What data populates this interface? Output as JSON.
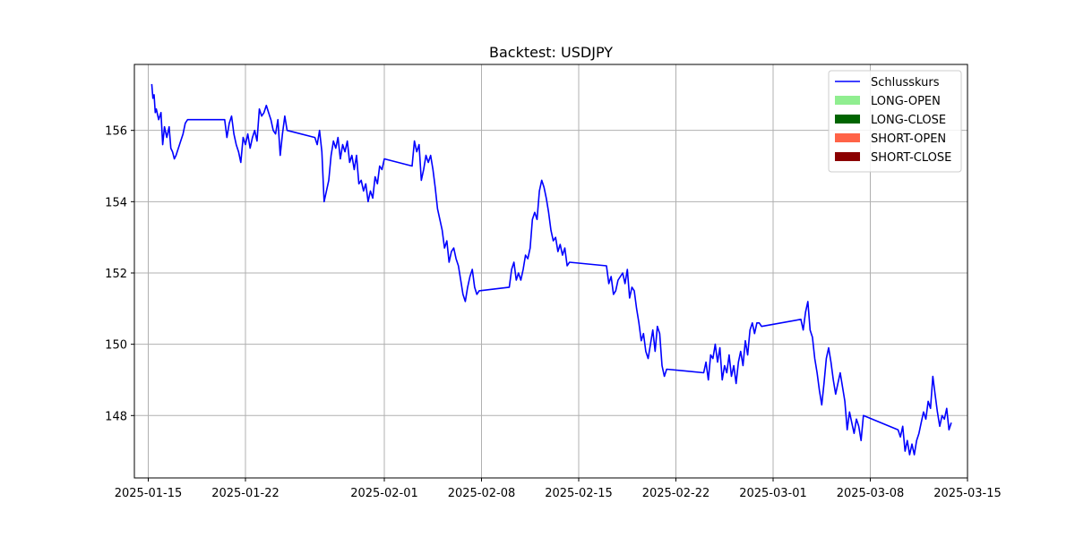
{
  "chart_data": {
    "type": "line",
    "title": "Backtest: USDJPY",
    "xlabel": "",
    "ylabel": "",
    "x_range": [
      "2025-01-14",
      "2025-03-15"
    ],
    "y_range": [
      146.25,
      157.85
    ],
    "x_ticks": [
      "2025-01-15",
      "2025-01-22",
      "2025-02-01",
      "2025-02-08",
      "2025-02-15",
      "2025-02-22",
      "2025-03-01",
      "2025-03-08",
      "2025-03-15"
    ],
    "y_ticks": [
      148,
      150,
      152,
      154,
      156
    ],
    "grid": true,
    "legend_position": "top-right",
    "legend": [
      {
        "label": "Schlusskurs",
        "kind": "line",
        "color": "#0000ff"
      },
      {
        "label": "LONG-OPEN",
        "kind": "patch",
        "color": "#90ee90"
      },
      {
        "label": "LONG-CLOSE",
        "kind": "patch",
        "color": "#006400"
      },
      {
        "label": "SHORT-OPEN",
        "kind": "patch",
        "color": "#ff6347"
      },
      {
        "label": "SHORT-CLOSE",
        "kind": "patch",
        "color": "#8b0000"
      }
    ],
    "series": [
      {
        "name": "Schlusskurs",
        "color": "#0000ff",
        "points": [
          [
            "2025-01-15 06:00",
            157.3
          ],
          [
            "2025-01-15 08:00",
            156.9
          ],
          [
            "2025-01-15 10:00",
            157.0
          ],
          [
            "2025-01-15 12:00",
            156.5
          ],
          [
            "2025-01-15 14:00",
            156.6
          ],
          [
            "2025-01-15 18:00",
            156.3
          ],
          [
            "2025-01-15 22:00",
            156.5
          ],
          [
            "2025-01-16 01:00",
            155.6
          ],
          [
            "2025-01-16 04:00",
            156.1
          ],
          [
            "2025-01-16 08:00",
            155.8
          ],
          [
            "2025-01-16 12:00",
            156.1
          ],
          [
            "2025-01-16 15:00",
            155.5
          ],
          [
            "2025-01-16 18:00",
            155.4
          ],
          [
            "2025-01-16 21:00",
            155.2
          ],
          [
            "2025-01-17 00:00",
            155.3
          ],
          [
            "2025-01-17 04:00",
            155.5
          ],
          [
            "2025-01-17 08:00",
            155.7
          ],
          [
            "2025-01-17 12:00",
            155.9
          ],
          [
            "2025-01-17 16:00",
            156.2
          ],
          [
            "2025-01-17 20:00",
            156.3
          ],
          [
            "2025-01-20 12:00",
            156.3
          ],
          [
            "2025-01-20 16:00",
            155.8
          ],
          [
            "2025-01-20 20:00",
            156.2
          ],
          [
            "2025-01-21 00:00",
            156.4
          ],
          [
            "2025-01-21 04:00",
            155.9
          ],
          [
            "2025-01-21 08:00",
            155.6
          ],
          [
            "2025-01-21 12:00",
            155.4
          ],
          [
            "2025-01-21 16:00",
            155.1
          ],
          [
            "2025-01-21 20:00",
            155.8
          ],
          [
            "2025-01-22 00:00",
            155.6
          ],
          [
            "2025-01-22 04:00",
            155.9
          ],
          [
            "2025-01-22 08:00",
            155.5
          ],
          [
            "2025-01-22 12:00",
            155.8
          ],
          [
            "2025-01-22 16:00",
            156.0
          ],
          [
            "2025-01-22 20:00",
            155.7
          ],
          [
            "2025-01-23 00:00",
            156.6
          ],
          [
            "2025-01-23 04:00",
            156.4
          ],
          [
            "2025-01-23 08:00",
            156.5
          ],
          [
            "2025-01-23 12:00",
            156.7
          ],
          [
            "2025-01-23 16:00",
            156.5
          ],
          [
            "2025-01-23 20:00",
            156.3
          ],
          [
            "2025-01-24 00:00",
            156.0
          ],
          [
            "2025-01-24 04:00",
            155.9
          ],
          [
            "2025-01-24 08:00",
            156.3
          ],
          [
            "2025-01-24 12:00",
            155.3
          ],
          [
            "2025-01-24 16:00",
            155.9
          ],
          [
            "2025-01-24 20:00",
            156.4
          ],
          [
            "2025-01-25 00:00",
            156.0
          ],
          [
            "2025-01-27 00:00",
            155.8
          ],
          [
            "2025-01-27 04:00",
            155.6
          ],
          [
            "2025-01-27 08:00",
            156.0
          ],
          [
            "2025-01-27 12:00",
            155.4
          ],
          [
            "2025-01-27 16:00",
            154.0
          ],
          [
            "2025-01-27 20:00",
            154.3
          ],
          [
            "2025-01-28 00:00",
            154.6
          ],
          [
            "2025-01-28 04:00",
            155.3
          ],
          [
            "2025-01-28 08:00",
            155.7
          ],
          [
            "2025-01-28 12:00",
            155.5
          ],
          [
            "2025-01-28 16:00",
            155.8
          ],
          [
            "2025-01-28 20:00",
            155.2
          ],
          [
            "2025-01-29 00:00",
            155.6
          ],
          [
            "2025-01-29 04:00",
            155.4
          ],
          [
            "2025-01-29 08:00",
            155.7
          ],
          [
            "2025-01-29 12:00",
            155.1
          ],
          [
            "2025-01-29 16:00",
            155.3
          ],
          [
            "2025-01-29 20:00",
            154.9
          ],
          [
            "2025-01-30 00:00",
            155.3
          ],
          [
            "2025-01-30 04:00",
            154.5
          ],
          [
            "2025-01-30 08:00",
            154.6
          ],
          [
            "2025-01-30 12:00",
            154.3
          ],
          [
            "2025-01-30 16:00",
            154.5
          ],
          [
            "2025-01-30 20:00",
            154.0
          ],
          [
            "2025-01-31 00:00",
            154.3
          ],
          [
            "2025-01-31 04:00",
            154.1
          ],
          [
            "2025-01-31 08:00",
            154.7
          ],
          [
            "2025-01-31 12:00",
            154.5
          ],
          [
            "2025-01-31 16:00",
            155.0
          ],
          [
            "2025-01-31 20:00",
            154.9
          ],
          [
            "2025-02-01 00:00",
            155.2
          ],
          [
            "2025-02-03 00:00",
            155.0
          ],
          [
            "2025-02-03 04:00",
            155.7
          ],
          [
            "2025-02-03 08:00",
            155.4
          ],
          [
            "2025-02-03 12:00",
            155.6
          ],
          [
            "2025-02-03 16:00",
            154.6
          ],
          [
            "2025-02-03 20:00",
            154.9
          ],
          [
            "2025-02-04 00:00",
            155.3
          ],
          [
            "2025-02-04 04:00",
            155.1
          ],
          [
            "2025-02-04 08:00",
            155.3
          ],
          [
            "2025-02-04 12:00",
            154.9
          ],
          [
            "2025-02-04 16:00",
            154.4
          ],
          [
            "2025-02-04 20:00",
            153.8
          ],
          [
            "2025-02-05 00:00",
            153.5
          ],
          [
            "2025-02-05 04:00",
            153.2
          ],
          [
            "2025-02-05 08:00",
            152.7
          ],
          [
            "2025-02-05 12:00",
            152.9
          ],
          [
            "2025-02-05 16:00",
            152.3
          ],
          [
            "2025-02-05 20:00",
            152.6
          ],
          [
            "2025-02-06 00:00",
            152.7
          ],
          [
            "2025-02-06 04:00",
            152.4
          ],
          [
            "2025-02-06 08:00",
            152.2
          ],
          [
            "2025-02-06 12:00",
            151.8
          ],
          [
            "2025-02-06 16:00",
            151.4
          ],
          [
            "2025-02-06 20:00",
            151.2
          ],
          [
            "2025-02-07 00:00",
            151.6
          ],
          [
            "2025-02-07 04:00",
            151.9
          ],
          [
            "2025-02-07 08:00",
            152.1
          ],
          [
            "2025-02-07 12:00",
            151.6
          ],
          [
            "2025-02-07 16:00",
            151.4
          ],
          [
            "2025-02-07 20:00",
            151.5
          ],
          [
            "2025-02-10 00:00",
            151.6
          ],
          [
            "2025-02-10 04:00",
            152.1
          ],
          [
            "2025-02-10 08:00",
            152.3
          ],
          [
            "2025-02-10 12:00",
            151.8
          ],
          [
            "2025-02-10 16:00",
            152.0
          ],
          [
            "2025-02-10 20:00",
            151.8
          ],
          [
            "2025-02-11 00:00",
            152.1
          ],
          [
            "2025-02-11 04:00",
            152.5
          ],
          [
            "2025-02-11 08:00",
            152.4
          ],
          [
            "2025-02-11 12:00",
            152.7
          ],
          [
            "2025-02-11 16:00",
            153.5
          ],
          [
            "2025-02-11 20:00",
            153.7
          ],
          [
            "2025-02-12 00:00",
            153.5
          ],
          [
            "2025-02-12 04:00",
            154.3
          ],
          [
            "2025-02-12 08:00",
            154.6
          ],
          [
            "2025-02-12 12:00",
            154.4
          ],
          [
            "2025-02-12 16:00",
            154.1
          ],
          [
            "2025-02-12 20:00",
            153.7
          ],
          [
            "2025-02-13 00:00",
            153.2
          ],
          [
            "2025-02-13 04:00",
            152.9
          ],
          [
            "2025-02-13 08:00",
            153.0
          ],
          [
            "2025-02-13 12:00",
            152.6
          ],
          [
            "2025-02-13 16:00",
            152.8
          ],
          [
            "2025-02-13 20:00",
            152.5
          ],
          [
            "2025-02-14 00:00",
            152.7
          ],
          [
            "2025-02-14 04:00",
            152.2
          ],
          [
            "2025-02-14 08:00",
            152.3
          ],
          [
            "2025-02-17 00:00",
            152.2
          ],
          [
            "2025-02-17 04:00",
            151.7
          ],
          [
            "2025-02-17 08:00",
            151.9
          ],
          [
            "2025-02-17 12:00",
            151.4
          ],
          [
            "2025-02-17 16:00",
            151.5
          ],
          [
            "2025-02-17 20:00",
            151.8
          ],
          [
            "2025-02-18 00:00",
            151.9
          ],
          [
            "2025-02-18 04:00",
            152.0
          ],
          [
            "2025-02-18 08:00",
            151.7
          ],
          [
            "2025-02-18 12:00",
            152.1
          ],
          [
            "2025-02-18 16:00",
            151.3
          ],
          [
            "2025-02-18 20:00",
            151.6
          ],
          [
            "2025-02-19 00:00",
            151.5
          ],
          [
            "2025-02-19 04:00",
            151.0
          ],
          [
            "2025-02-19 08:00",
            150.6
          ],
          [
            "2025-02-19 12:00",
            150.1
          ],
          [
            "2025-02-19 16:00",
            150.3
          ],
          [
            "2025-02-19 20:00",
            149.8
          ],
          [
            "2025-02-20 00:00",
            149.6
          ],
          [
            "2025-02-20 04:00",
            150.0
          ],
          [
            "2025-02-20 08:00",
            150.4
          ],
          [
            "2025-02-20 12:00",
            149.8
          ],
          [
            "2025-02-20 16:00",
            150.5
          ],
          [
            "2025-02-20 20:00",
            150.3
          ],
          [
            "2025-02-21 00:00",
            149.4
          ],
          [
            "2025-02-21 04:00",
            149.1
          ],
          [
            "2025-02-21 08:00",
            149.3
          ],
          [
            "2025-02-24 00:00",
            149.2
          ],
          [
            "2025-02-24 04:00",
            149.5
          ],
          [
            "2025-02-24 08:00",
            149.0
          ],
          [
            "2025-02-24 12:00",
            149.7
          ],
          [
            "2025-02-24 16:00",
            149.6
          ],
          [
            "2025-02-24 20:00",
            150.0
          ],
          [
            "2025-02-25 00:00",
            149.5
          ],
          [
            "2025-02-25 04:00",
            149.9
          ],
          [
            "2025-02-25 08:00",
            149.0
          ],
          [
            "2025-02-25 12:00",
            149.4
          ],
          [
            "2025-02-25 16:00",
            149.2
          ],
          [
            "2025-02-25 20:00",
            149.7
          ],
          [
            "2025-02-26 00:00",
            149.1
          ],
          [
            "2025-02-26 04:00",
            149.4
          ],
          [
            "2025-02-26 08:00",
            148.9
          ],
          [
            "2025-02-26 12:00",
            149.5
          ],
          [
            "2025-02-26 16:00",
            149.8
          ],
          [
            "2025-02-26 20:00",
            149.4
          ],
          [
            "2025-02-27 00:00",
            150.1
          ],
          [
            "2025-02-27 04:00",
            149.7
          ],
          [
            "2025-02-27 08:00",
            150.4
          ],
          [
            "2025-02-27 12:00",
            150.6
          ],
          [
            "2025-02-27 16:00",
            150.3
          ],
          [
            "2025-02-27 20:00",
            150.6
          ],
          [
            "2025-02-28 00:00",
            150.6
          ],
          [
            "2025-02-28 04:00",
            150.5
          ],
          [
            "2025-03-03 00:00",
            150.7
          ],
          [
            "2025-03-03 04:00",
            150.4
          ],
          [
            "2025-03-03 08:00",
            150.9
          ],
          [
            "2025-03-03 12:00",
            151.2
          ],
          [
            "2025-03-03 16:00",
            150.4
          ],
          [
            "2025-03-03 20:00",
            150.2
          ],
          [
            "2025-03-04 00:00",
            149.6
          ],
          [
            "2025-03-04 04:00",
            149.2
          ],
          [
            "2025-03-04 08:00",
            148.7
          ],
          [
            "2025-03-04 12:00",
            148.3
          ],
          [
            "2025-03-04 16:00",
            148.9
          ],
          [
            "2025-03-04 20:00",
            149.6
          ],
          [
            "2025-03-05 00:00",
            149.9
          ],
          [
            "2025-03-05 04:00",
            149.5
          ],
          [
            "2025-03-05 08:00",
            149.0
          ],
          [
            "2025-03-05 12:00",
            148.6
          ],
          [
            "2025-03-05 16:00",
            148.9
          ],
          [
            "2025-03-05 20:00",
            149.2
          ],
          [
            "2025-03-06 00:00",
            148.8
          ],
          [
            "2025-03-06 04:00",
            148.4
          ],
          [
            "2025-03-06 08:00",
            147.6
          ],
          [
            "2025-03-06 12:00",
            148.1
          ],
          [
            "2025-03-06 16:00",
            147.8
          ],
          [
            "2025-03-06 20:00",
            147.5
          ],
          [
            "2025-03-07 00:00",
            147.9
          ],
          [
            "2025-03-07 04:00",
            147.7
          ],
          [
            "2025-03-07 08:00",
            147.3
          ],
          [
            "2025-03-07 12:00",
            148.0
          ],
          [
            "2025-03-10 00:00",
            147.6
          ],
          [
            "2025-03-10 04:00",
            147.4
          ],
          [
            "2025-03-10 08:00",
            147.7
          ],
          [
            "2025-03-10 12:00",
            147.0
          ],
          [
            "2025-03-10 16:00",
            147.3
          ],
          [
            "2025-03-10 20:00",
            146.9
          ],
          [
            "2025-03-11 00:00",
            147.2
          ],
          [
            "2025-03-11 04:00",
            146.9
          ],
          [
            "2025-03-11 08:00",
            147.3
          ],
          [
            "2025-03-11 12:00",
            147.5
          ],
          [
            "2025-03-11 16:00",
            147.8
          ],
          [
            "2025-03-11 20:00",
            148.1
          ],
          [
            "2025-03-12 00:00",
            147.9
          ],
          [
            "2025-03-12 04:00",
            148.4
          ],
          [
            "2025-03-12 08:00",
            148.2
          ],
          [
            "2025-03-12 12:00",
            149.1
          ],
          [
            "2025-03-12 16:00",
            148.6
          ],
          [
            "2025-03-12 20:00",
            148.1
          ],
          [
            "2025-03-13 00:00",
            147.7
          ],
          [
            "2025-03-13 04:00",
            148.0
          ],
          [
            "2025-03-13 08:00",
            147.9
          ],
          [
            "2025-03-13 12:00",
            148.2
          ],
          [
            "2025-03-13 16:00",
            147.6
          ],
          [
            "2025-03-13 20:00",
            147.8
          ]
        ]
      }
    ]
  }
}
